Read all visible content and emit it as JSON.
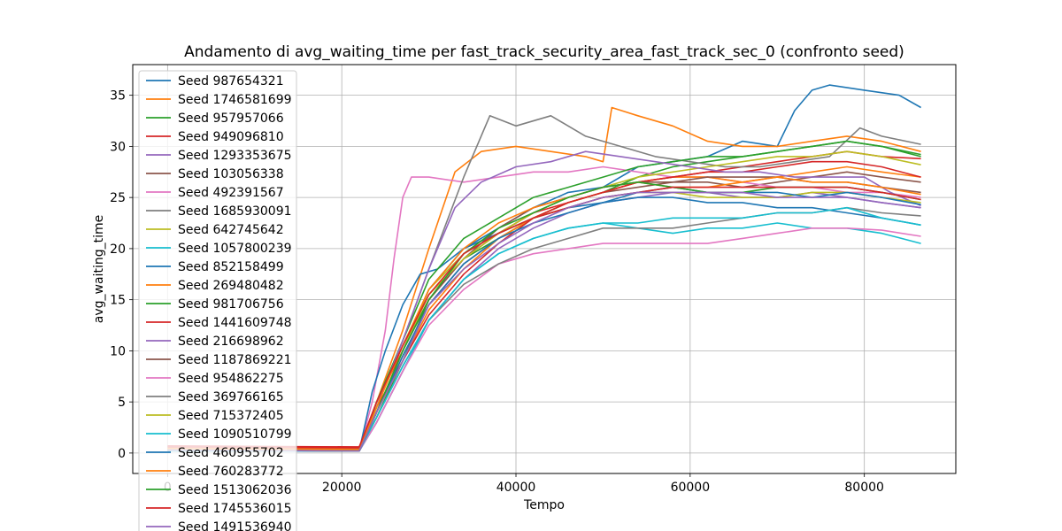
{
  "chart_data": {
    "type": "line",
    "title": "Andamento di avg_waiting_time per fast_track_security_area_fast_track_sec_0 (confronto seed)",
    "xlabel": "Tempo",
    "ylabel": "avg_waiting_time",
    "xlim": [
      -4000,
      90500
    ],
    "ylim": [
      -2.0,
      38.0
    ],
    "xticks": [
      0,
      20000,
      40000,
      60000,
      80000
    ],
    "xtick_labels": [
      "0",
      "20000",
      "40000",
      "60000",
      "80000"
    ],
    "yticks": [
      0,
      5,
      10,
      15,
      20,
      25,
      30,
      35
    ],
    "ytick_labels": [
      "0",
      "5",
      "10",
      "15",
      "20",
      "25",
      "30",
      "35"
    ],
    "grid": true,
    "legend_position": "upper-left",
    "series": [
      {
        "name": "Seed 987654321",
        "color": "#1f77b4",
        "x": [
          0,
          22000,
          24000,
          27000,
          30000,
          34000,
          38000,
          42000,
          46000,
          50000,
          54000,
          58000,
          62000,
          66000,
          70000,
          72000,
          74000,
          76000,
          80000,
          84000,
          86500
        ],
        "y": [
          0.3,
          0.2,
          4.0,
          10.0,
          16.0,
          20.0,
          22.0,
          24.0,
          25.5,
          26.0,
          28.0,
          28.5,
          29.0,
          30.5,
          30.0,
          33.5,
          35.5,
          36.0,
          35.5,
          35.0,
          33.8
        ]
      },
      {
        "name": "Seed 1746581699",
        "color": "#ff7f0e",
        "x": [
          0,
          22000,
          24000,
          27000,
          30000,
          33000,
          36000,
          40000,
          44000,
          48000,
          50000,
          51000,
          54000,
          58000,
          62000,
          66000,
          70000,
          74000,
          78000,
          82000,
          86500
        ],
        "y": [
          0.5,
          0.4,
          5.0,
          12.0,
          20.0,
          27.5,
          29.5,
          30.0,
          29.5,
          29.0,
          28.5,
          33.8,
          33.0,
          32.0,
          30.5,
          30.0,
          30.0,
          30.5,
          31.0,
          30.5,
          29.5
        ]
      },
      {
        "name": "Seed 957957066",
        "color": "#2ca02c",
        "x": [
          0,
          22000,
          24000,
          27000,
          30000,
          34000,
          38000,
          42000,
          46000,
          50000,
          54000,
          58000,
          62000,
          66000,
          70000,
          74000,
          78000,
          82000,
          86500
        ],
        "y": [
          0.3,
          0.2,
          3.5,
          9.0,
          15.0,
          19.0,
          21.0,
          23.0,
          24.5,
          25.5,
          27.0,
          28.0,
          28.5,
          29.0,
          29.5,
          30.0,
          30.5,
          30.0,
          29.2
        ]
      },
      {
        "name": "Seed 949096810",
        "color": "#d62728",
        "x": [
          0,
          22000,
          24000,
          27000,
          30000,
          34000,
          38000,
          42000,
          46000,
          50000,
          54000,
          58000,
          62000,
          66000,
          70000,
          74000,
          78000,
          82000,
          86500
        ],
        "y": [
          0.6,
          0.5,
          5.0,
          10.0,
          15.0,
          19.0,
          21.5,
          23.5,
          24.5,
          25.5,
          26.5,
          27.0,
          27.5,
          28.0,
          28.5,
          29.0,
          29.5,
          29.0,
          28.8
        ]
      },
      {
        "name": "Seed 1293353675",
        "color": "#9467bd",
        "x": [
          0,
          22000,
          24000,
          27000,
          30000,
          34000,
          38000,
          42000,
          46000,
          50000,
          54000,
          58000,
          62000,
          66000,
          70000,
          74000,
          78000,
          82000,
          86500
        ],
        "y": [
          0.2,
          0.2,
          3.0,
          8.0,
          13.0,
          17.0,
          20.0,
          22.0,
          23.5,
          24.5,
          25.0,
          25.5,
          25.5,
          25.0,
          25.0,
          25.5,
          25.0,
          24.5,
          24.0
        ]
      },
      {
        "name": "Seed 103056338",
        "color": "#8c564b",
        "x": [
          0,
          22000,
          24000,
          27000,
          30000,
          34000,
          38000,
          42000,
          46000,
          50000,
          54000,
          58000,
          62000,
          66000,
          70000,
          74000,
          78000,
          82000,
          86500
        ],
        "y": [
          0.3,
          0.3,
          4.0,
          9.5,
          14.5,
          18.5,
          21.0,
          23.0,
          24.5,
          25.5,
          26.0,
          26.5,
          26.5,
          26.0,
          26.5,
          27.0,
          27.5,
          27.0,
          26.5
        ]
      },
      {
        "name": "Seed 492391567",
        "color": "#e377c2",
        "x": [
          0,
          22000,
          23500,
          25000,
          26000,
          27000,
          28000,
          30000,
          34000,
          38000,
          42000,
          46000,
          50000,
          54000,
          58000,
          62000,
          66000,
          70000,
          74000,
          78000,
          82000,
          86500
        ],
        "y": [
          0.2,
          0.2,
          5.0,
          12.0,
          19.0,
          25.0,
          27.0,
          27.0,
          26.5,
          27.0,
          27.5,
          27.5,
          28.0,
          27.5,
          27.0,
          27.0,
          26.5,
          26.0,
          26.0,
          25.5,
          25.5,
          25.0
        ]
      },
      {
        "name": "Seed 1685930091",
        "color": "#7f7f7f",
        "x": [
          0,
          22000,
          24000,
          27000,
          30000,
          34000,
          37000,
          40000,
          44000,
          48000,
          52000,
          56000,
          60000,
          64000,
          68000,
          72000,
          76000,
          79500,
          82000,
          86500
        ],
        "y": [
          0.4,
          0.3,
          4.5,
          11.0,
          18.0,
          27.0,
          33.0,
          32.0,
          33.0,
          31.0,
          30.0,
          29.0,
          28.5,
          28.0,
          28.0,
          28.5,
          29.0,
          31.8,
          31.0,
          30.2
        ]
      },
      {
        "name": "Seed 642745642",
        "color": "#bcbd22",
        "x": [
          0,
          22000,
          24000,
          27000,
          30000,
          34000,
          38000,
          42000,
          46000,
          50000,
          54000,
          58000,
          62000,
          66000,
          70000,
          74000,
          78000,
          82000,
          86500
        ],
        "y": [
          0.3,
          0.2,
          4.0,
          10.0,
          16.0,
          19.5,
          21.5,
          23.5,
          25.0,
          26.0,
          27.0,
          27.5,
          28.0,
          28.5,
          29.0,
          29.0,
          29.5,
          29.0,
          28.2
        ]
      },
      {
        "name": "Seed 1057800239",
        "color": "#17becf",
        "x": [
          0,
          22000,
          24000,
          27000,
          30000,
          34000,
          38000,
          42000,
          46000,
          50000,
          54000,
          58000,
          62000,
          66000,
          70000,
          74000,
          78000,
          82000,
          86500
        ],
        "y": [
          0.2,
          0.2,
          3.0,
          8.0,
          13.0,
          17.0,
          19.5,
          21.0,
          22.0,
          22.5,
          22.0,
          21.5,
          22.0,
          22.0,
          22.5,
          22.0,
          22.0,
          21.5,
          20.5
        ]
      },
      {
        "name": "Seed 852158499",
        "color": "#1f77b4",
        "x": [
          0,
          22000,
          23500,
          25000,
          27000,
          29000,
          31000,
          34000,
          38000,
          42000,
          46000,
          50000,
          54000,
          58000,
          62000,
          66000,
          70000,
          74000,
          78000,
          82000,
          86500
        ],
        "y": [
          0.3,
          0.2,
          6.0,
          10.0,
          14.5,
          17.5,
          18.0,
          20.0,
          21.5,
          23.0,
          24.0,
          24.5,
          25.0,
          25.0,
          24.5,
          24.5,
          24.0,
          24.0,
          23.5,
          23.0,
          22.3
        ]
      },
      {
        "name": "Seed 269480482",
        "color": "#ff7f0e",
        "x": [
          0,
          22000,
          24000,
          27000,
          30000,
          34000,
          38000,
          42000,
          46000,
          50000,
          54000,
          58000,
          62000,
          66000,
          70000,
          74000,
          78000,
          82000,
          86500
        ],
        "y": [
          0.4,
          0.3,
          4.0,
          9.0,
          14.0,
          18.0,
          21.0,
          23.0,
          24.5,
          25.5,
          26.5,
          27.0,
          27.0,
          26.5,
          27.0,
          27.5,
          28.0,
          27.5,
          27.0
        ]
      },
      {
        "name": "Seed 981706756",
        "color": "#2ca02c",
        "x": [
          0,
          22000,
          24000,
          27000,
          30000,
          34000,
          38000,
          42000,
          46000,
          50000,
          54000,
          58000,
          62000,
          66000,
          70000,
          74000,
          78000,
          82000,
          86500
        ],
        "y": [
          0.3,
          0.2,
          5.0,
          11.0,
          17.0,
          21.0,
          23.0,
          25.0,
          26.0,
          27.0,
          28.0,
          28.5,
          29.0,
          29.0,
          29.5,
          30.0,
          30.5,
          30.0,
          29.0
        ]
      },
      {
        "name": "Seed 1441609748",
        "color": "#d62728",
        "x": [
          0,
          22000,
          24000,
          27000,
          30000,
          34000,
          38000,
          42000,
          46000,
          50000,
          54000,
          58000,
          62000,
          66000,
          70000,
          74000,
          78000,
          82000,
          86500
        ],
        "y": [
          0.6,
          0.6,
          4.5,
          9.0,
          13.5,
          17.5,
          20.5,
          23.0,
          24.5,
          25.5,
          26.5,
          27.0,
          27.5,
          27.5,
          28.0,
          28.5,
          28.5,
          28.0,
          27.0
        ]
      },
      {
        "name": "Seed 216698962",
        "color": "#9467bd",
        "x": [
          0,
          22000,
          24000,
          27000,
          30000,
          33000,
          36000,
          40000,
          44000,
          48000,
          52000,
          56000,
          60000,
          64000,
          68000,
          72000,
          76000,
          80000,
          83000,
          86500
        ],
        "y": [
          0.3,
          0.2,
          4.5,
          11.0,
          18.0,
          24.0,
          26.5,
          28.0,
          28.5,
          29.5,
          29.0,
          28.5,
          28.0,
          27.5,
          27.5,
          27.0,
          27.0,
          27.0,
          25.5,
          24.2
        ]
      },
      {
        "name": "Seed 1187869221",
        "color": "#8c564b",
        "x": [
          0,
          22000,
          24000,
          27000,
          30000,
          34000,
          38000,
          42000,
          46000,
          50000,
          54000,
          58000,
          62000,
          66000,
          70000,
          74000,
          78000,
          82000,
          86500
        ],
        "y": [
          0.3,
          0.2,
          4.0,
          10.0,
          15.0,
          19.0,
          22.0,
          24.0,
          25.0,
          26.0,
          26.5,
          26.5,
          27.0,
          27.0,
          27.0,
          26.5,
          26.5,
          26.0,
          25.5
        ]
      },
      {
        "name": "Seed 954862275",
        "color": "#e377c2",
        "x": [
          0,
          22000,
          24000,
          27000,
          30000,
          34000,
          38000,
          42000,
          46000,
          50000,
          54000,
          58000,
          62000,
          66000,
          70000,
          74000,
          78000,
          82000,
          86500
        ],
        "y": [
          0.2,
          0.2,
          3.0,
          8.0,
          12.5,
          16.0,
          18.5,
          19.5,
          20.0,
          20.5,
          20.5,
          20.5,
          20.5,
          21.0,
          21.5,
          22.0,
          22.0,
          21.8,
          21.2
        ]
      },
      {
        "name": "Seed 369766165",
        "color": "#7f7f7f",
        "x": [
          0,
          22000,
          24000,
          27000,
          30000,
          34000,
          38000,
          42000,
          46000,
          50000,
          54000,
          58000,
          62000,
          66000,
          70000,
          74000,
          78000,
          82000,
          86500
        ],
        "y": [
          0.3,
          0.3,
          3.5,
          8.5,
          13.0,
          16.5,
          18.5,
          20.0,
          21.0,
          22.0,
          22.0,
          22.0,
          22.5,
          23.0,
          23.5,
          23.5,
          24.0,
          23.5,
          23.2
        ]
      },
      {
        "name": "Seed 715372405",
        "color": "#bcbd22",
        "x": [
          0,
          22000,
          24000,
          27000,
          30000,
          34000,
          38000,
          42000,
          46000,
          50000,
          54000,
          58000,
          62000,
          66000,
          70000,
          74000,
          78000,
          82000,
          86500
        ],
        "y": [
          0.3,
          0.2,
          4.0,
          10.0,
          15.5,
          19.0,
          21.5,
          23.0,
          24.0,
          25.0,
          25.5,
          25.5,
          25.0,
          25.0,
          25.0,
          25.5,
          25.5,
          25.0,
          24.5
        ]
      },
      {
        "name": "Seed 1090510799",
        "color": "#17becf",
        "x": [
          0,
          22000,
          24000,
          27000,
          30000,
          34000,
          38000,
          42000,
          46000,
          50000,
          54000,
          58000,
          62000,
          66000,
          70000,
          74000,
          78000,
          82000,
          86500
        ],
        "y": [
          0.2,
          0.2,
          3.5,
          8.5,
          13.0,
          17.0,
          19.5,
          21.0,
          22.0,
          22.5,
          22.5,
          23.0,
          23.0,
          23.0,
          23.5,
          23.5,
          24.0,
          23.0,
          22.3
        ]
      },
      {
        "name": "Seed 460955702",
        "color": "#1f77b4",
        "x": [
          0,
          22000,
          24000,
          27000,
          30000,
          34000,
          38000,
          42000,
          46000,
          50000,
          54000,
          58000,
          62000,
          66000,
          70000,
          74000,
          78000,
          82000,
          86500
        ],
        "y": [
          0.3,
          0.2,
          4.0,
          9.5,
          14.5,
          18.5,
          21.0,
          22.5,
          23.5,
          24.5,
          25.5,
          26.0,
          25.5,
          25.5,
          25.5,
          25.0,
          25.5,
          25.0,
          24.3
        ]
      },
      {
        "name": "Seed 760283772",
        "color": "#ff7f0e",
        "x": [
          0,
          22000,
          24000,
          27000,
          30000,
          34000,
          38000,
          42000,
          46000,
          50000,
          54000,
          58000,
          62000,
          66000,
          70000,
          74000,
          78000,
          82000,
          86500
        ],
        "y": [
          0.4,
          0.3,
          4.5,
          10.5,
          16.0,
          20.0,
          22.5,
          24.0,
          25.0,
          26.0,
          26.5,
          26.0,
          26.0,
          26.5,
          27.0,
          26.5,
          26.5,
          26.0,
          25.3
        ]
      },
      {
        "name": "Seed 1513062036",
        "color": "#2ca02c",
        "x": [
          0,
          22000,
          24000,
          27000,
          30000,
          34000,
          38000,
          42000,
          46000,
          50000,
          54000,
          58000,
          62000,
          66000,
          70000,
          74000,
          78000,
          82000,
          86500
        ],
        "y": [
          0.3,
          0.2,
          4.0,
          10.0,
          15.0,
          19.5,
          22.0,
          23.5,
          25.0,
          26.0,
          26.5,
          26.0,
          25.5,
          25.5,
          26.0,
          26.0,
          26.0,
          25.5,
          24.8
        ]
      },
      {
        "name": "Seed 1745536015",
        "color": "#d62728",
        "x": [
          0,
          22000,
          24000,
          27000,
          30000,
          34000,
          38000,
          42000,
          46000,
          50000,
          54000,
          58000,
          62000,
          66000,
          70000,
          74000,
          78000,
          82000,
          86500
        ],
        "y": [
          0.7,
          0.6,
          5.0,
          10.5,
          15.5,
          19.5,
          21.5,
          23.0,
          24.0,
          25.0,
          25.5,
          26.0,
          26.0,
          26.0,
          26.0,
          26.0,
          26.0,
          25.5,
          24.8
        ]
      },
      {
        "name": "Seed 1491536940",
        "color": "#9467bd",
        "x": [
          0,
          22000,
          24000,
          27000,
          30000,
          34000,
          38000,
          42000,
          46000,
          50000,
          54000,
          58000,
          62000,
          66000,
          70000,
          74000,
          78000,
          82000,
          86500
        ],
        "y": [
          0.3,
          0.2,
          4.0,
          9.0,
          14.5,
          18.0,
          20.5,
          22.5,
          24.0,
          25.0,
          25.5,
          25.5,
          25.5,
          25.5,
          25.0,
          25.0,
          25.0,
          24.5,
          24.0
        ]
      }
    ]
  }
}
